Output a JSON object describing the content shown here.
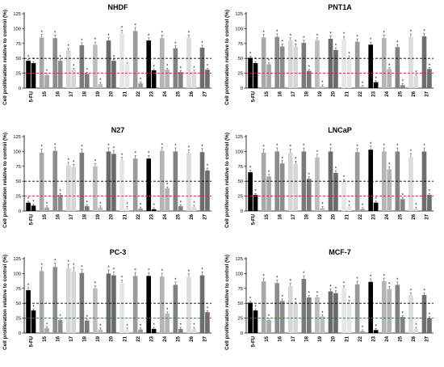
{
  "chart_data": [
    {
      "type": "bar",
      "title": "NHDF",
      "ylabel": "Cell proliferation relative to control (%)",
      "categories": [
        "5-FU",
        "15",
        "16",
        "17",
        "18",
        "19",
        "20",
        "21",
        "22",
        "23",
        "24",
        "25",
        "26",
        "27"
      ],
      "ylim": [
        0,
        125
      ],
      "yticks": [
        0,
        25,
        50,
        75,
        100,
        125
      ],
      "reference_lines": [
        {
          "value": 50,
          "color": "#000000",
          "style": "dashed"
        },
        {
          "value": 25,
          "color": "#e02020",
          "style": "dashed"
        }
      ],
      "series": [
        {
          "values": [
            46,
            85,
            84,
            63,
            72,
            73,
            80,
            92,
            96,
            80,
            84,
            67,
            84,
            68
          ]
        },
        {
          "values": [
            42,
            22,
            46,
            31,
            24,
            7,
            46,
            40,
            8,
            30,
            31,
            27,
            28,
            31
          ]
        }
      ],
      "significance": [
        [
          true,
          true
        ],
        [
          true,
          true
        ],
        [
          true,
          true
        ],
        [
          true,
          true
        ],
        [
          true,
          true
        ],
        [
          true,
          true
        ],
        [
          true,
          true
        ],
        [
          true,
          false
        ],
        [
          true,
          true
        ],
        [
          true,
          true
        ],
        [
          true,
          true
        ],
        [
          true,
          true
        ],
        [
          true,
          true
        ],
        [
          true,
          true
        ]
      ]
    },
    {
      "type": "bar",
      "title": "PNT1A",
      "ylabel": "Cell proliferation relative to control (%)",
      "categories": [
        "5-FU",
        "15",
        "16",
        "17",
        "18",
        "19",
        "20",
        "21",
        "22",
        "23",
        "24",
        "25",
        "26",
        "27"
      ],
      "ylim": [
        0,
        125
      ],
      "yticks": [
        0,
        25,
        50,
        75,
        100,
        125
      ],
      "reference_lines": [
        {
          "value": 50,
          "color": "#000000",
          "style": "dashed"
        },
        {
          "value": 25,
          "color": "#e02020",
          "style": "dashed"
        }
      ],
      "series": [
        {
          "values": [
            51,
            85,
            86,
            80,
            76,
            80,
            83,
            82,
            78,
            73,
            84,
            69,
            86,
            87
          ]
        },
        {
          "values": [
            42,
            40,
            70,
            70,
            29,
            3,
            64,
            51,
            2,
            10,
            32,
            5,
            20,
            32
          ]
        }
      ],
      "significance": [
        [
          true,
          true
        ],
        [
          true,
          true
        ],
        [
          true,
          true
        ],
        [
          true,
          true
        ],
        [
          true,
          true
        ],
        [
          true,
          true
        ],
        [
          true,
          true
        ],
        [
          true,
          true
        ],
        [
          true,
          true
        ],
        [
          true,
          true
        ],
        [
          true,
          true
        ],
        [
          true,
          true
        ],
        [
          true,
          true
        ],
        [
          true,
          true
        ]
      ]
    },
    {
      "type": "bar",
      "title": "N27",
      "ylabel": "Cell proliferation relative to control (%)",
      "categories": [
        "5-FU",
        "15",
        "16",
        "17",
        "18",
        "19",
        "20",
        "21",
        "22",
        "23",
        "24",
        "25",
        "26",
        "27"
      ],
      "ylim": [
        0,
        125
      ],
      "yticks": [
        0,
        25,
        50,
        75,
        100,
        125
      ],
      "reference_lines": [
        {
          "value": 50,
          "color": "#000000",
          "style": "dashed"
        },
        {
          "value": 25,
          "color": "#e02020",
          "style": "dashed"
        }
      ],
      "series": [
        {
          "values": [
            14,
            98,
            101,
            77,
            98,
            75,
            100,
            85,
            88,
            88,
            101,
            100,
            97,
            99
          ]
        },
        {
          "values": [
            9,
            6,
            27,
            74,
            8,
            6,
            96,
            5,
            4,
            3,
            38,
            8,
            7,
            68
          ]
        }
      ],
      "significance": [
        [
          true,
          true
        ],
        [
          true,
          true
        ],
        [
          true,
          true
        ],
        [
          true,
          true
        ],
        [
          true,
          true
        ],
        [
          true,
          true
        ],
        [
          true,
          true
        ],
        [
          true,
          true
        ],
        [
          true,
          true
        ],
        [
          true,
          true
        ],
        [
          true,
          true
        ],
        [
          true,
          true
        ],
        [
          true,
          true
        ],
        [
          true,
          true
        ]
      ]
    },
    {
      "type": "bar",
      "title": "LNCaP",
      "ylabel": "Cell proliferation relative to control (%)",
      "categories": [
        "5-FU",
        "15",
        "16",
        "17",
        "18",
        "19",
        "20",
        "21",
        "22",
        "23",
        "24",
        "25",
        "26",
        "27"
      ],
      "ylim": [
        0,
        125
      ],
      "yticks": [
        0,
        25,
        50,
        75,
        100,
        125
      ],
      "reference_lines": [
        {
          "value": 50,
          "color": "#000000",
          "style": "dashed"
        },
        {
          "value": 25,
          "color": "#e02020",
          "style": "dashed"
        }
      ],
      "series": [
        {
          "values": [
            65,
            98,
            100,
            98,
            100,
            90,
            100,
            50,
            99,
            103,
            100,
            100,
            91,
            100
          ]
        },
        {
          "values": [
            27,
            58,
            80,
            79,
            54,
            5,
            64,
            8,
            3,
            14,
            70,
            20,
            4,
            27
          ]
        }
      ],
      "significance": [
        [
          true,
          true
        ],
        [
          true,
          true
        ],
        [
          true,
          true
        ],
        [
          true,
          true
        ],
        [
          true,
          true
        ],
        [
          true,
          true
        ],
        [
          true,
          true
        ],
        [
          true,
          true
        ],
        [
          true,
          true
        ],
        [
          true,
          true
        ],
        [
          true,
          true
        ],
        [
          true,
          true
        ],
        [
          true,
          true
        ],
        [
          true,
          true
        ]
      ]
    },
    {
      "type": "bar",
      "title": "PC-3",
      "ylabel": "Cell proliferation relative to control (%)",
      "categories": [
        "5-FU",
        "15",
        "16",
        "17",
        "18",
        "19",
        "20",
        "21",
        "22",
        "23",
        "24",
        "25",
        "26",
        "27"
      ],
      "ylim": [
        0,
        125
      ],
      "yticks": [
        0,
        25,
        50,
        75,
        100,
        125
      ],
      "reference_lines": [
        {
          "value": 50,
          "color": "#000000",
          "style": "dashed"
        },
        {
          "value": 25,
          "color": "#e02020",
          "style": "dashed"
        }
      ],
      "series": [
        {
          "values": [
            72,
            104,
            111,
            109,
            101,
            75,
            100,
            84,
            96,
            96,
            95,
            81,
            94,
            97
          ]
        },
        {
          "values": [
            38,
            8,
            22,
            104,
            21,
            6,
            97,
            6,
            6,
            7,
            33,
            7,
            7,
            35
          ]
        }
      ],
      "significance": [
        [
          true,
          true
        ],
        [
          true,
          true
        ],
        [
          true,
          true
        ],
        [
          true,
          true
        ],
        [
          true,
          true
        ],
        [
          true,
          true
        ],
        [
          true,
          true
        ],
        [
          true,
          true
        ],
        [
          true,
          true
        ],
        [
          true,
          true
        ],
        [
          true,
          true
        ],
        [
          true,
          true
        ],
        [
          true,
          true
        ],
        [
          true,
          true
        ]
      ]
    },
    {
      "type": "bar",
      "title": "MCF-7",
      "ylabel": "Cell proliferation relative to control (%)",
      "categories": [
        "5-FU",
        "15",
        "16",
        "17",
        "18",
        "19",
        "20",
        "21",
        "22",
        "23",
        "24",
        "25",
        "26",
        "27"
      ],
      "ylim": [
        0,
        125
      ],
      "yticks": [
        0,
        25,
        50,
        75,
        100,
        125
      ],
      "reference_lines": [
        {
          "value": 50,
          "color": "#000000",
          "style": "dashed"
        },
        {
          "value": 25,
          "color": "#e02020",
          "style": "dashed"
        }
      ],
      "series": [
        {
          "values": [
            51,
            87,
            84,
            79,
            91,
            60,
            70,
            75,
            82,
            86,
            87,
            81,
            64,
            64
          ]
        },
        {
          "values": [
            38,
            22,
            54,
            49,
            60,
            28,
            67,
            52,
            3,
            5,
            74,
            27,
            7,
            25
          ]
        }
      ],
      "significance": [
        [
          true,
          true
        ],
        [
          true,
          true
        ],
        [
          true,
          true
        ],
        [
          true,
          true
        ],
        [
          true,
          true
        ],
        [
          true,
          true
        ],
        [
          true,
          true
        ],
        [
          true,
          true
        ],
        [
          true,
          true
        ],
        [
          true,
          true
        ],
        [
          true,
          true
        ],
        [
          true,
          true
        ],
        [
          true,
          true
        ],
        [
          true,
          true
        ]
      ]
    }
  ],
  "colors": {
    "group_fills": [
      "#000000",
      "#a8a8a8",
      "#8c8c8c",
      "#d6d6d6",
      "#7a7a7a",
      "#bdbdbd",
      "#6a6a6a",
      "#e6e6e6",
      "#9a9a9a",
      "#000000",
      "#b4b4b4",
      "#828282",
      "#dcdcdc",
      "#6e6e6e"
    ],
    "reference_black": "#000000",
    "reference_red": "#e02020",
    "axis": "#000000"
  },
  "star_glyph": "*"
}
